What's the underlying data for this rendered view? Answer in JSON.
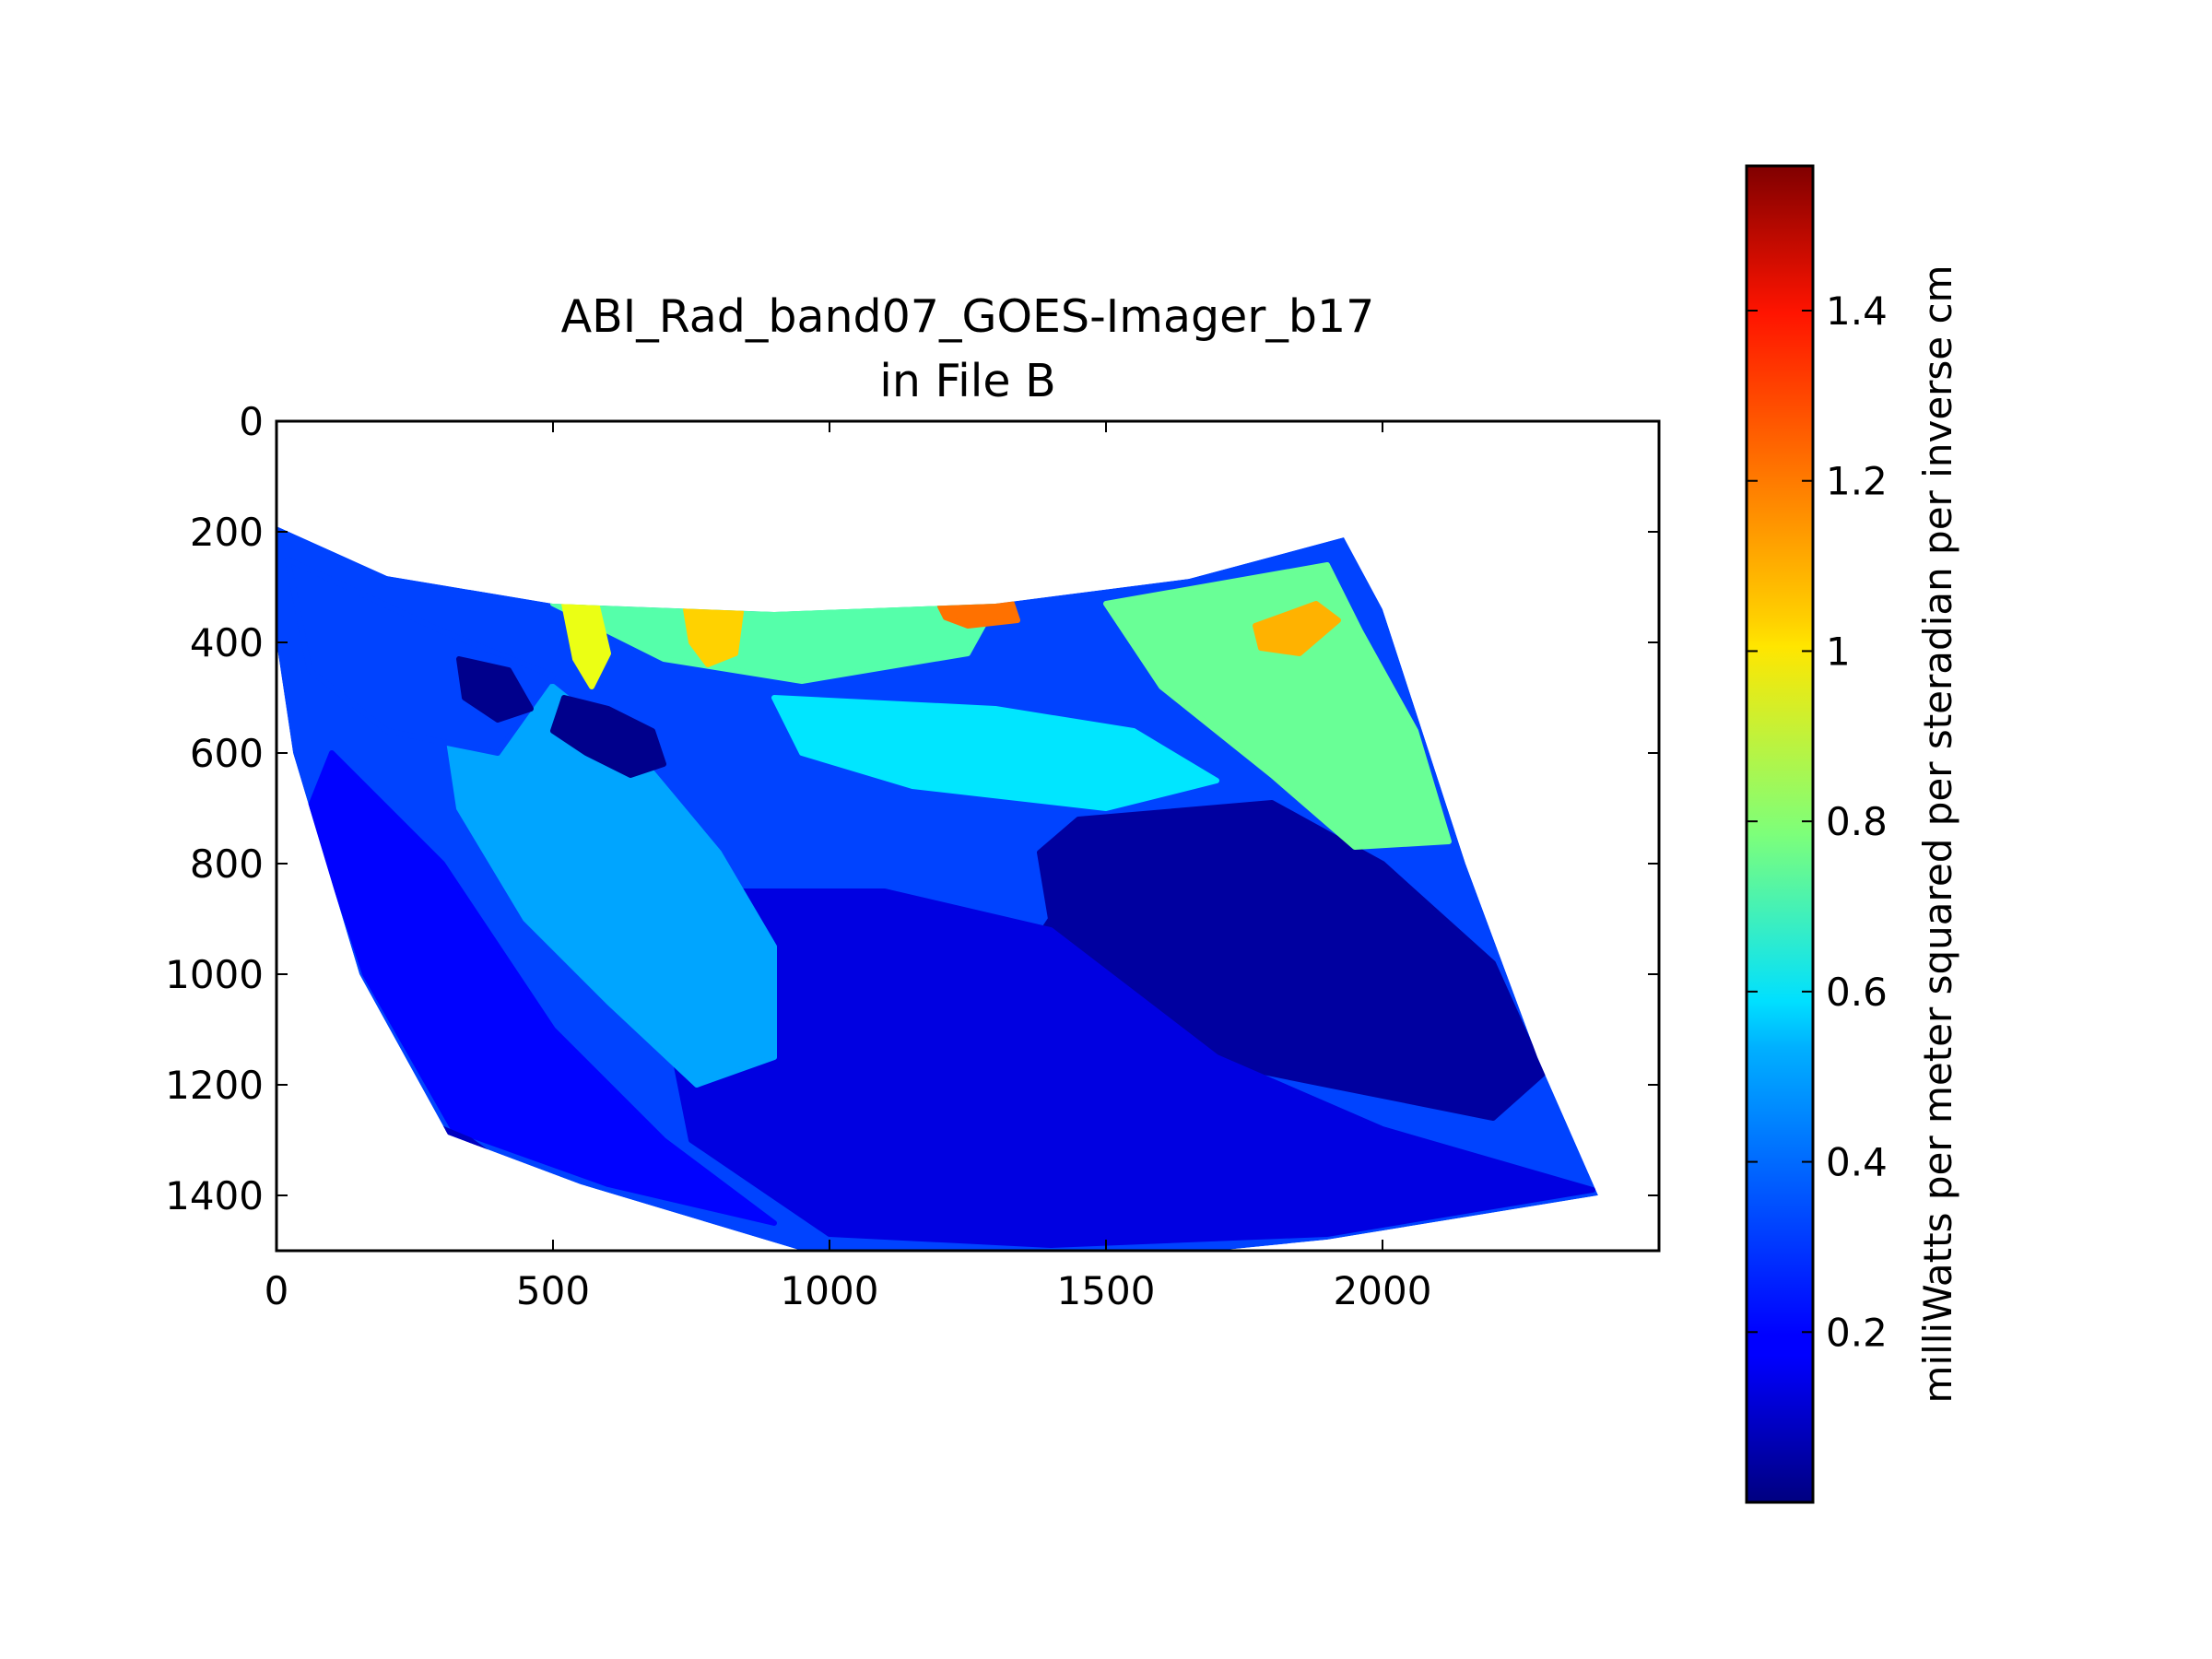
{
  "chart_data": {
    "type": "heatmap",
    "title": "ABI_Rad_band07_GOES-Imager_b17",
    "subtitle": "in File B",
    "xlim": [
      0,
      2500
    ],
    "ylim": [
      1500,
      0
    ],
    "x_ticks": [
      "0",
      "500",
      "1000",
      "1500",
      "2000"
    ],
    "x_tick_values": [
      0,
      500,
      1000,
      1500,
      2000
    ],
    "y_ticks": [
      "0",
      "200",
      "400",
      "600",
      "800",
      "1000",
      "1200",
      "1400"
    ],
    "y_tick_values": [
      0,
      200,
      400,
      600,
      800,
      1000,
      1200,
      1400
    ],
    "colormap": "jet",
    "colorbar": {
      "label": "milliWatts per meter squared per steradian per inverse cm",
      "range": [
        0.0,
        1.57
      ],
      "ticks": [
        "0.2",
        "0.4",
        "0.6",
        "0.8",
        "1",
        "1.2",
        "1.4"
      ],
      "tick_values": [
        0.2,
        0.4,
        0.6,
        0.8,
        1.0,
        1.2,
        1.4
      ]
    },
    "data_extent_outline": [
      [
        0,
        190
      ],
      [
        200,
        280
      ],
      [
        500,
        330
      ],
      [
        900,
        345
      ],
      [
        1300,
        330
      ],
      [
        1650,
        285
      ],
      [
        1930,
        210
      ],
      [
        2000,
        340
      ],
      [
        2150,
        800
      ],
      [
        2280,
        1150
      ],
      [
        2390,
        1400
      ],
      [
        1900,
        1480
      ],
      [
        1500,
        1520
      ],
      [
        950,
        1500
      ],
      [
        550,
        1380
      ],
      [
        310,
        1290
      ],
      [
        150,
        1000
      ],
      [
        30,
        600
      ],
      [
        0,
        400
      ]
    ],
    "regions": [
      {
        "label": "",
        "value": 0.05,
        "outline": [
          [
            1450,
            720
          ],
          [
            1800,
            690
          ],
          [
            2000,
            800
          ],
          [
            2200,
            980
          ],
          [
            2290,
            1180
          ],
          [
            2200,
            1260
          ],
          [
            1900,
            1200
          ],
          [
            1600,
            1140
          ],
          [
            1300,
            1050
          ],
          [
            1400,
            900
          ],
          [
            1380,
            780
          ]
        ]
      },
      {
        "label": "",
        "value": 0.15,
        "outline": [
          [
            800,
            850
          ],
          [
            1100,
            850
          ],
          [
            1400,
            920
          ],
          [
            1700,
            1150
          ],
          [
            2000,
            1280
          ],
          [
            2380,
            1390
          ],
          [
            1900,
            1470
          ],
          [
            1400,
            1490
          ],
          [
            1000,
            1470
          ],
          [
            750,
            1300
          ],
          [
            700,
            1050
          ]
        ]
      },
      {
        "label": "",
        "value": 0.2,
        "outline": [
          [
            100,
            600
          ],
          [
            300,
            800
          ],
          [
            500,
            1100
          ],
          [
            700,
            1300
          ],
          [
            900,
            1450
          ],
          [
            600,
            1380
          ],
          [
            320,
            1280
          ],
          [
            160,
            1000
          ],
          [
            60,
            700
          ]
        ]
      },
      {
        "label": "",
        "value": 0.45,
        "outline": [
          [
            300,
            500
          ],
          [
            500,
            480
          ],
          [
            650,
            600
          ],
          [
            800,
            780
          ],
          [
            900,
            950
          ],
          [
            900,
            1150
          ],
          [
            760,
            1200
          ],
          [
            600,
            1050
          ],
          [
            450,
            900
          ],
          [
            330,
            700
          ]
        ]
      },
      {
        "label": "",
        "value": 0.55,
        "outline": [
          [
            900,
            500
          ],
          [
            1300,
            520
          ],
          [
            1550,
            560
          ],
          [
            1700,
            650
          ],
          [
            1500,
            700
          ],
          [
            1150,
            660
          ],
          [
            950,
            600
          ]
        ]
      },
      {
        "label": "",
        "value": 0.3,
        "outline": [
          [
            20,
            250
          ],
          [
            300,
            380
          ],
          [
            500,
            460
          ],
          [
            400,
            600
          ],
          [
            200,
            560
          ],
          [
            60,
            450
          ]
        ]
      },
      {
        "label": "",
        "value": 0.75,
        "outline": [
          [
            1500,
            330
          ],
          [
            1900,
            260
          ],
          [
            1960,
            380
          ],
          [
            2060,
            560
          ],
          [
            2120,
            760
          ],
          [
            1950,
            770
          ],
          [
            1800,
            640
          ],
          [
            1600,
            480
          ]
        ]
      },
      {
        "label": "",
        "value": 0.72,
        "outline": [
          [
            500,
            330
          ],
          [
            850,
            345
          ],
          [
            1300,
            330
          ],
          [
            1250,
            420
          ],
          [
            950,
            470
          ],
          [
            700,
            430
          ]
        ]
      },
      {
        "label": "",
        "value": 0.95,
        "outline": [
          [
            520,
            330
          ],
          [
            580,
            335
          ],
          [
            600,
            420
          ],
          [
            570,
            480
          ],
          [
            540,
            430
          ]
        ]
      },
      {
        "label": "",
        "value": 1.05,
        "outline": [
          [
            740,
            340
          ],
          [
            840,
            345
          ],
          [
            830,
            420
          ],
          [
            780,
            440
          ],
          [
            750,
            400
          ]
        ]
      },
      {
        "label": "",
        "value": 1.2,
        "outline": [
          [
            1200,
            335
          ],
          [
            1330,
            330
          ],
          [
            1340,
            360
          ],
          [
            1250,
            370
          ],
          [
            1210,
            355
          ]
        ]
      },
      {
        "label": "",
        "value": 1.1,
        "outline": [
          [
            1770,
            370
          ],
          [
            1880,
            330
          ],
          [
            1920,
            360
          ],
          [
            1850,
            420
          ],
          [
            1780,
            410
          ]
        ]
      },
      {
        "label": "",
        "value": 0.02,
        "outline": [
          [
            520,
            500
          ],
          [
            600,
            520
          ],
          [
            680,
            560
          ],
          [
            700,
            620
          ],
          [
            640,
            640
          ],
          [
            560,
            600
          ],
          [
            500,
            560
          ]
        ]
      },
      {
        "label": "",
        "value": 0.02,
        "outline": [
          [
            330,
            430
          ],
          [
            420,
            450
          ],
          [
            460,
            520
          ],
          [
            400,
            540
          ],
          [
            340,
            500
          ]
        ]
      },
      {
        "label": "",
        "value": 0.1,
        "outline": [
          [
            230,
            1250
          ],
          [
            350,
            1300
          ],
          [
            460,
            1380
          ],
          [
            360,
            1370
          ],
          [
            260,
            1310
          ]
        ]
      }
    ]
  }
}
